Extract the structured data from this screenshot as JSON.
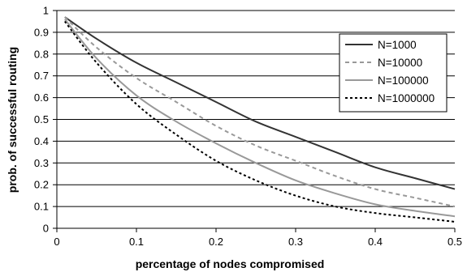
{
  "chart_data": {
    "type": "line",
    "title": "",
    "xlabel": "percentage of nodes compromised",
    "ylabel": "prob. of successful routing",
    "xlim": [
      0,
      0.5
    ],
    "ylim": [
      0,
      1
    ],
    "x_ticks": [
      "0",
      "0.1",
      "0.2",
      "0.3",
      "0.4",
      "0.5"
    ],
    "y_ticks": [
      "0",
      "0.1",
      "0.2",
      "0.3",
      "0.4",
      "0.5",
      "0.6",
      "0.7",
      "0.8",
      "0.9",
      "1"
    ],
    "grid": "horizontal",
    "legend_position": "right",
    "x": [
      0.01,
      0.05,
      0.1,
      0.15,
      0.2,
      0.25,
      0.3,
      0.35,
      0.4,
      0.45,
      0.5
    ],
    "series": [
      {
        "name": "N=1000",
        "color": "#333333",
        "style": "solid",
        "values": [
          0.97,
          0.87,
          0.76,
          0.67,
          0.58,
          0.49,
          0.42,
          0.35,
          0.28,
          0.23,
          0.18
        ]
      },
      {
        "name": "N=10000",
        "color": "#999999",
        "style": "dashed",
        "values": [
          0.97,
          0.83,
          0.69,
          0.58,
          0.47,
          0.38,
          0.31,
          0.24,
          0.18,
          0.14,
          0.1
        ]
      },
      {
        "name": "N=100000",
        "color": "#999999",
        "style": "solid",
        "values": [
          0.96,
          0.78,
          0.61,
          0.49,
          0.39,
          0.3,
          0.22,
          0.16,
          0.11,
          0.08,
          0.055
        ]
      },
      {
        "name": "N=1000000",
        "color": "#000000",
        "style": "dotted",
        "values": [
          0.95,
          0.76,
          0.57,
          0.43,
          0.31,
          0.22,
          0.15,
          0.1,
          0.07,
          0.05,
          0.03
        ]
      }
    ]
  }
}
